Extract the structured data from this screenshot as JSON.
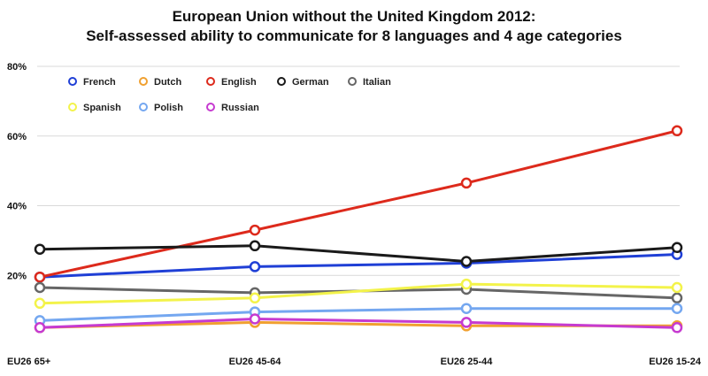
{
  "chart_data": {
    "type": "line",
    "title": [
      "European Union without the United Kingdom 2012:",
      "Self-assessed ability to communicate for 8 languages and 4 age categories"
    ],
    "xlabel": "",
    "ylabel": "",
    "categories": [
      "EU26 65+",
      "EU26 45-64",
      "EU26 25-44",
      "EU26 15-24"
    ],
    "ylim": [
      0,
      80
    ],
    "yticks": [
      {
        "value": 20,
        "label": "20%"
      },
      {
        "value": 40,
        "label": "40%"
      },
      {
        "value": 60,
        "label": "60%"
      },
      {
        "value": 80,
        "label": "80%"
      }
    ],
    "grid": "horizontal",
    "legend_position": "top-left",
    "series": [
      {
        "name": "French",
        "color": "#1f3fd6",
        "values": [
          19.5,
          22.5,
          23.5,
          26
        ]
      },
      {
        "name": "Dutch",
        "color": "#f0a030",
        "values": [
          5,
          6.5,
          5.5,
          5.5
        ]
      },
      {
        "name": "English",
        "color": "#dd2a1c",
        "values": [
          19.5,
          33,
          46.5,
          61.5
        ]
      },
      {
        "name": "German",
        "color": "#1a1a1a",
        "values": [
          27.5,
          28.5,
          24,
          28
        ]
      },
      {
        "name": "Italian",
        "color": "#666666",
        "values": [
          16.5,
          15,
          16,
          13.5
        ]
      },
      {
        "name": "Spanish",
        "color": "#f3f34a",
        "values": [
          12,
          13.5,
          17.5,
          16.5
        ]
      },
      {
        "name": "Polish",
        "color": "#74a7f0",
        "values": [
          7,
          9.5,
          10.5,
          10.5
        ]
      },
      {
        "name": "Russian",
        "color": "#c63ad0",
        "values": [
          5,
          7.5,
          6.5,
          5
        ]
      }
    ]
  }
}
